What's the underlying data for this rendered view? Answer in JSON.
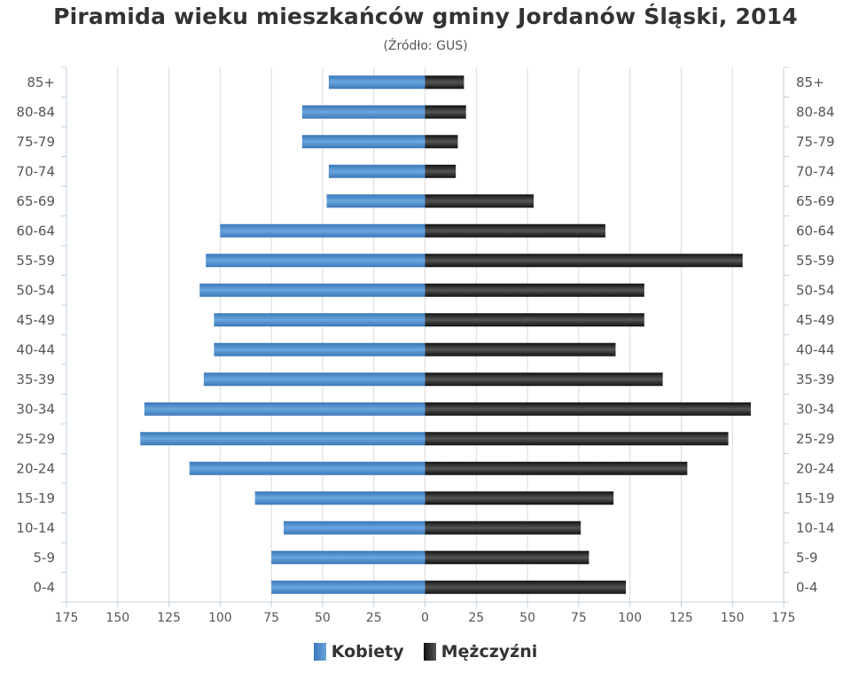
{
  "title": "Piramida wieku mieszkańców gminy Jordanów Śląski, 2014",
  "subtitle": "(Źródło: GUS)",
  "colors": {
    "female": "#3a78b8",
    "female_light": "#6aa5dd",
    "male": "#111111",
    "male_light": "#555555",
    "grid": "#d9d9d9",
    "axis": "#c0d0e0"
  },
  "chart_data": {
    "type": "bar",
    "orientation": "horizontal-population-pyramid",
    "categories": [
      "85+",
      "80-84",
      "75-79",
      "70-74",
      "65-69",
      "60-64",
      "55-59",
      "50-54",
      "45-49",
      "40-44",
      "35-39",
      "30-34",
      "25-29",
      "20-24",
      "15-19",
      "10-14",
      "5-9",
      "0-4"
    ],
    "series": [
      {
        "name": "Kobiety",
        "side": "left",
        "values": [
          47,
          60,
          60,
          47,
          48,
          100,
          107,
          110,
          103,
          103,
          108,
          137,
          139,
          115,
          83,
          69,
          75,
          75
        ]
      },
      {
        "name": "Mężczyźni",
        "side": "right",
        "values": [
          19,
          20,
          16,
          15,
          53,
          88,
          155,
          107,
          107,
          93,
          116,
          159,
          148,
          128,
          92,
          76,
          80,
          98
        ]
      }
    ],
    "xlim": [
      -175,
      175
    ],
    "x_ticks": [
      -175,
      -150,
      -125,
      -100,
      -75,
      -50,
      -25,
      0,
      25,
      50,
      75,
      100,
      125,
      150,
      175
    ],
    "x_tick_labels": [
      "175",
      "150",
      "125",
      "100",
      "75",
      "50",
      "25",
      "0",
      "25",
      "50",
      "75",
      "100",
      "125",
      "150",
      "175"
    ],
    "grid": true,
    "legend_position": "bottom-center"
  }
}
